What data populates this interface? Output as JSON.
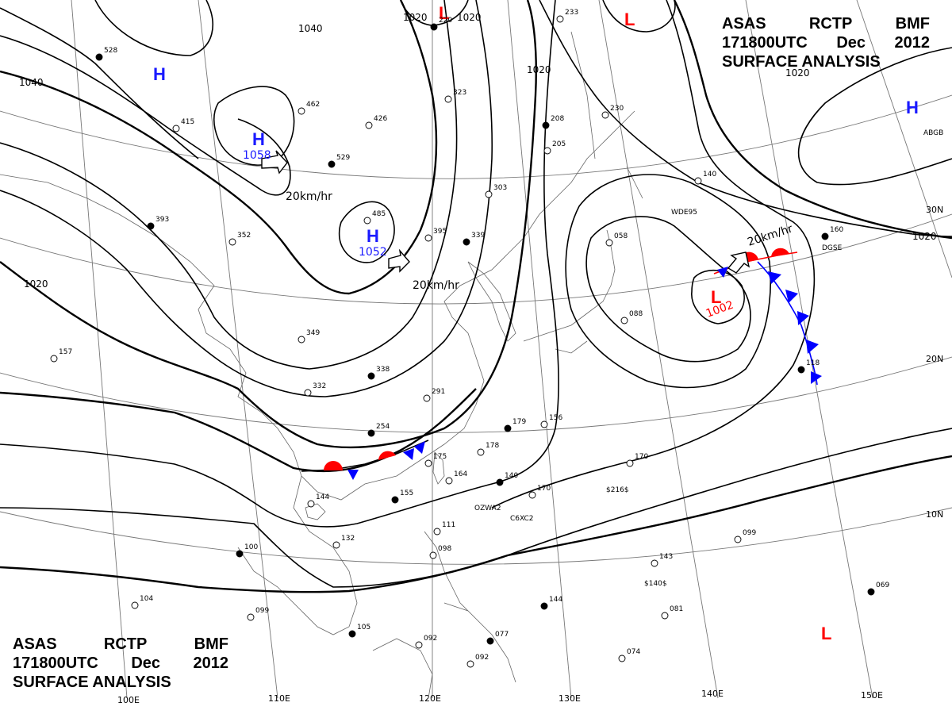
{
  "header": {
    "line1": [
      "ASAS",
      "RCTP",
      "BMF"
    ],
    "line2": [
      "171800UTC",
      "Dec",
      "2012"
    ],
    "line3": "SURFACE ANALYSIS"
  },
  "graticule": {
    "latitudes": [
      "30N",
      "20N",
      "10N"
    ],
    "longitudes": [
      "100E",
      "110E",
      "120E",
      "130E",
      "140E",
      "150E"
    ]
  },
  "isobar_labels": [
    "1040",
    "1040",
    "1020",
    "1020",
    "1020",
    "1020",
    "1020",
    "1020"
  ],
  "pressure_centers": [
    {
      "type": "H",
      "value": "1058",
      "color": "#1a1aff"
    },
    {
      "type": "H",
      "value": "1052",
      "color": "#1a1aff"
    },
    {
      "type": "H",
      "value": "",
      "color": "#1a1aff"
    },
    {
      "type": "H",
      "value": "",
      "color": "#1a1aff"
    },
    {
      "type": "L",
      "value": "1002",
      "color": "#ff0000"
    },
    {
      "type": "L",
      "value": "",
      "color": "#ff0000"
    },
    {
      "type": "L",
      "value": "",
      "color": "#ff0000"
    },
    {
      "type": "L",
      "value": "",
      "color": "#ff0000"
    }
  ],
  "motion_labels": [
    "20km/hr",
    "20km/hr",
    "20km/hr"
  ],
  "ship_callsigns": [
    "WDE95",
    "DGSE",
    "OZWA2",
    "C6XC2",
    "$216$",
    "$140$",
    "ABGB"
  ],
  "station_values": [
    "528",
    "415",
    "462",
    "529",
    "426",
    "323",
    "208",
    "205",
    "303",
    "339",
    "395",
    "485",
    "393",
    "352",
    "349",
    "338",
    "332",
    "291",
    "254",
    "175",
    "164",
    "155",
    "144",
    "132",
    "100",
    "104",
    "099",
    "105",
    "092",
    "092",
    "077",
    "111",
    "098",
    "140",
    "170",
    "178",
    "179",
    "156",
    "170",
    "144",
    "099",
    "143",
    "069",
    "081",
    "074",
    "118",
    "088",
    "058",
    "160",
    "140",
    "157",
    "220",
    "233",
    "230"
  ],
  "colors": {
    "high": "#1a1aff",
    "low": "#ff0000",
    "cold_front": "#0000ff",
    "warm_front": "#ff0000"
  }
}
